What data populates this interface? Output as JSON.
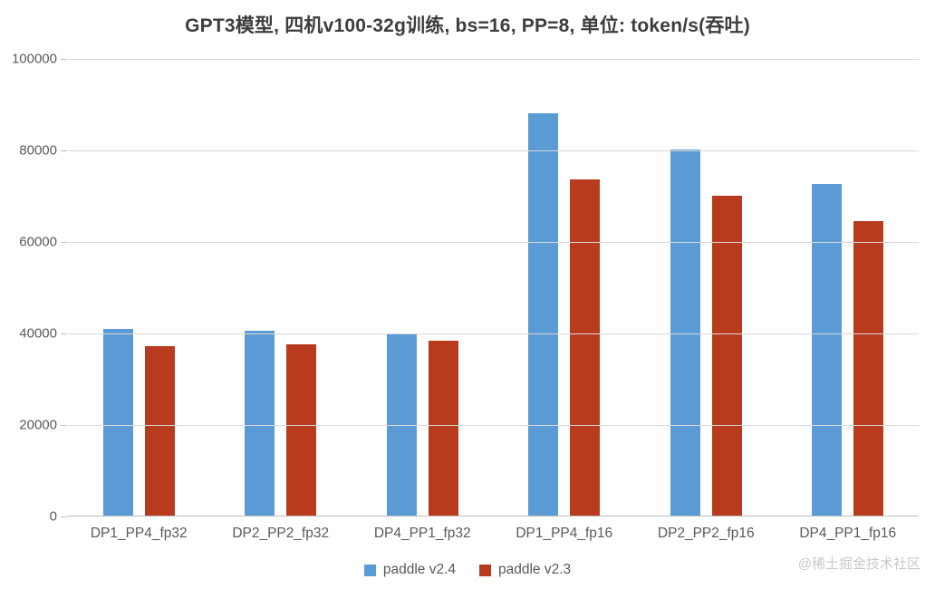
{
  "chart_data": {
    "type": "bar",
    "title": "GPT3模型, 四机v100-32g训练, bs=16, PP=8, 单位: token/s(吞吐)",
    "categories": [
      "DP1_PP4_fp32",
      "DP2_PP2_fp32",
      "DP4_PP1_fp32",
      "DP1_PP4_fp16",
      "DP2_PP2_fp16",
      "DP4_PP1_fp16"
    ],
    "series": [
      {
        "name": "paddle v2.4",
        "color": "#5b9bd5",
        "values": [
          40800,
          40400,
          39600,
          88000,
          80000,
          72500
        ]
      },
      {
        "name": "paddle v2.3",
        "color": "#b93b1d",
        "values": [
          37000,
          37400,
          38200,
          73500,
          70000,
          64400
        ]
      }
    ],
    "xlabel": "",
    "ylabel": "",
    "ylim": [
      0,
      100000
    ],
    "ytick_interval": 20000,
    "yticks": [
      "0",
      "20000",
      "40000",
      "60000",
      "80000",
      "100000"
    ],
    "grid": true,
    "legend_position": "bottom"
  },
  "watermark": "@稀土掘金技术社区"
}
